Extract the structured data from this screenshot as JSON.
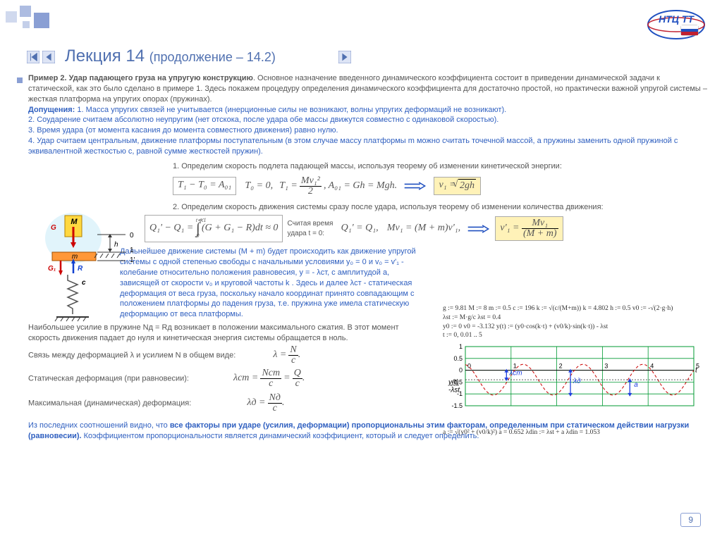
{
  "title": {
    "main": "Лекция 14",
    "sub": "(продолжение – 14.2)"
  },
  "intro": {
    "label": "Пример 2. Удар падающего груза на упругую конструкцию",
    "text": ". Основное назначение введенного динамического коэффициента состоит в приведении динамической задачи к статической, как это было сделано в примере 1. Здесь покажем процедуру определения динамического коэффициента для достаточно простой, но практически важной упругой системы – жесткая платформа на упругих опорах (пружинах)."
  },
  "assumptions": {
    "label": "Допущения:",
    "items": [
      "1. Масса упругих связей не учитывается (инерционные силы не возникают, волны упругих деформаций не возникают).",
      "2. Соударение считаем абсолютно неупругим (нет отскока, после удара обе массы движутся совместно с одинаковой скоростью).",
      "3.  Время удара (от момента касания до момента совместного движения) равно нулю.",
      "4. Удар считаем центральным, движение платформы поступательным (в этом случае массу платформы m можно считать точечной массой, а пружины заменить одной пружиной с эквивалентной жесткостью c, равной сумме жесткостей пружин)."
    ]
  },
  "step1": "1.  Определим скорость подлета падающей массы, используя теорему об изменении кинетической энергии:",
  "step2": "2.  Определим скорость движения системы сразу после удара, используя теорему об изменении количества движения:",
  "step2note": "Считая время удара t = 0:",
  "formulas": {
    "f1": "T₁ − T₀ = A₀₁",
    "f2_a": "T₀ = 0,",
    "f2_b": "T₁ =",
    "f2_frac_n": "Mv₁²",
    "f2_frac_d": "2",
    "f2_c": ",  A₀₁ = Gh = Mgh.",
    "f3_a": "v₁ =",
    "f3_root": "2gh",
    "f4": "Q₁' − Q₁ =",
    "f4_int_top": "t≪1",
    "f4_int_bot": "0",
    "f4_int": "(G + G₁ − R)dt ≈ 0",
    "f5_a": "Q₁' = Q₁,",
    "f5_b": "Mv₁ = (M + m)v'₁,",
    "f6_a": "v'₁ =",
    "f6_n": "Mv₁",
    "f6_d": "(M + m)",
    "lam": "λ =",
    "lam_n": "N",
    "lam_d": "c",
    "lamst": "λст =",
    "lamst_n1": "Nст",
    "lamst_d": "c",
    "lamst_eq": " =",
    "lamst_n2": "Q",
    "lamd": "λд =",
    "lamd_n": "Nд",
    "lamd_d": "c"
  },
  "blue_para": "Дальнейшее движение системы (M + m) будет происходить как движение упругой системы с одной степенью свободы с начальными условиями y₀ = 0 и v₀ = v'₁ - колебание относительно положения равновесия, y = - λст, с амплитудой a,  зависящей от скорости v₀ и круговой частоты  k . Здесь и далее   λст  - статическая деформация от веса груза, поскольку начало координат принято совпадающим с положением платформы до падения груза, т.е. пружина уже имела статическую деформацию от веса платформы.",
  "max_force": "Наибольшее  усилие в пружине Nд = Rд возникает в положении максимального сжатия. В этот момент скорость движения падает до нуля и кинетическая энергия системы обращается в ноль.",
  "relation": "Связь между деформацией λ и усилием N в общем виде:",
  "static": "Статическая деформация (при равновесии):",
  "maxdef": "Максимальная (динамическая) деформация:",
  "conclusion": {
    "text1": "Из последних соотношений видно, что ",
    "bold": "все факторы при ударе (усилия, деформации) пропорциональны этим факторам, определенным при статическом действии нагрузки (равновесии).",
    "text2": " Коэффициентом  пропорциональности является динамический коэффициент, который  и следует определить."
  },
  "diagram": {
    "labels": {
      "G": "G",
      "M": "M",
      "m": "m",
      "G1": "G₁",
      "R": "R",
      "c": "c",
      "h": "h",
      "zero": "0",
      "one": "1",
      "one_p": "1'"
    }
  },
  "chart": {
    "xlim": [
      0,
      5
    ],
    "ylim": [
      -1.5,
      1
    ],
    "xticks": [
      0,
      1,
      2,
      3,
      4,
      5
    ],
    "yticks": [
      -1.5,
      -1,
      -0.5,
      0,
      0.5,
      1
    ],
    "grid_color": "#009933",
    "bg": "#ffffff",
    "lambda_st": -0.4,
    "series": [
      {
        "label": "y(t)",
        "color": "#cc0000",
        "dash": true,
        "amp": 0.65,
        "offset": -0.4,
        "freq": 4.8,
        "type": "cos",
        "lw": 1
      }
    ],
    "annotations": {
      "lst": "λст",
      "ld": "λд",
      "a": "a",
      "t": "t"
    },
    "arrow_color": "#2040e0"
  },
  "params": {
    "l1": "g := 9.81    M := 8    m := 0.5    c := 196    k := √(c/(M+m))    k = 4.802    h := 0.5    v0 := -√(2·g·h)",
    "l2": "λst := M·g/c    λst = 0.4",
    "l3": "y0 := 0    v0 = -3.132    y(t) := (y0·cos(k·t) + (v0/k)·sin(k·t)) - λst",
    "l4": "t := 0, 0.01 .. 5",
    "l5": "a := √(y0² + (v0/k)²)    a = 0.652    λdin := λst + a    λdin = 1.053"
  },
  "page": "9",
  "logo_text": "НТЦ TT"
}
